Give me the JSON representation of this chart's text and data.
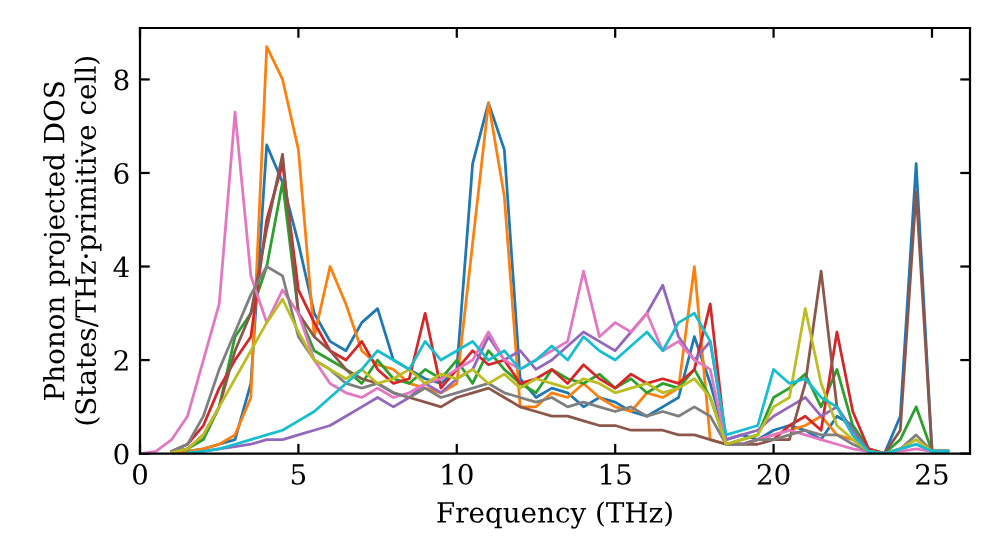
{
  "chart_data": {
    "type": "line",
    "xlabel": "Frequency (THz)",
    "ylabel": "Phonon projected DOS\n(States/THz·primitive cell)",
    "xlim": [
      0,
      26.2
    ],
    "ylim": [
      0,
      9.1
    ],
    "xticks": [
      0,
      5,
      10,
      15,
      20,
      25
    ],
    "yticks": [
      0,
      2,
      4,
      6,
      8
    ],
    "grid": false,
    "legend": false,
    "marker": "none",
    "line_style": "solid",
    "x": [
      0,
      0.5,
      1,
      1.5,
      2,
      2.5,
      3,
      3.5,
      4,
      4.5,
      5,
      5.5,
      6,
      6.5,
      7,
      7.5,
      8,
      8.5,
      9,
      9.5,
      10,
      10.5,
      11,
      11.5,
      12,
      12.5,
      13,
      13.5,
      14,
      14.5,
      15,
      15.5,
      16,
      16.5,
      17,
      17.5,
      18,
      18.5,
      19,
      19.5,
      20,
      20.5,
      21,
      21.5,
      22,
      22.5,
      23,
      23.5,
      24,
      24.5,
      25,
      25.5
    ],
    "series": [
      {
        "color": "#1f77b4",
        "values": [
          null,
          null,
          0.02,
          0.05,
          0.1,
          0.2,
          0.3,
          1.5,
          6.6,
          5.8,
          4.5,
          3.0,
          2.4,
          2.2,
          2.8,
          3.1,
          2.0,
          1.8,
          1.6,
          1.5,
          1.8,
          6.2,
          7.5,
          6.5,
          1.6,
          1.2,
          1.4,
          1.3,
          1.0,
          1.2,
          1.1,
          0.9,
          0.8,
          1.0,
          1.2,
          2.5,
          1.5,
          0.3,
          0.4,
          0.3,
          0.5,
          0.6,
          0.5,
          0.3,
          0.8,
          0.6,
          0.1,
          0,
          0.8,
          6.2,
          0.05,
          0.05
        ]
      },
      {
        "color": "#ff7f0e",
        "values": [
          null,
          null,
          0.02,
          0.05,
          0.1,
          0.2,
          0.4,
          1.2,
          8.7,
          8.0,
          6.5,
          2.5,
          4.0,
          3.2,
          2.2,
          1.9,
          1.8,
          1.5,
          1.4,
          1.3,
          1.5,
          4.5,
          7.5,
          5.5,
          1.0,
          1.0,
          1.3,
          1.2,
          1.5,
          1.2,
          1.0,
          0.9,
          1.3,
          1.2,
          1.4,
          4.0,
          0.3,
          0.2,
          0.2,
          0.3,
          0.4,
          0.5,
          0.6,
          0.8,
          0.4,
          0.3,
          0.05,
          null,
          null,
          null,
          null,
          null
        ]
      },
      {
        "color": "#2ca02c",
        "values": [
          null,
          null,
          0.02,
          0.1,
          0.3,
          1.0,
          2.5,
          3.0,
          4.0,
          5.8,
          3.0,
          2.2,
          2.0,
          1.8,
          1.5,
          2.0,
          1.6,
          1.5,
          1.8,
          1.6,
          2.0,
          1.5,
          2.2,
          1.8,
          1.5,
          1.3,
          1.8,
          1.6,
          1.5,
          1.7,
          1.4,
          1.6,
          1.3,
          1.5,
          1.4,
          1.8,
          1.2,
          0.2,
          0.3,
          0.4,
          1.2,
          1.4,
          1.7,
          1.0,
          1.8,
          0.6,
          0.1,
          0,
          0.3,
          1.0,
          0.05,
          0.05
        ]
      },
      {
        "color": "#d62728",
        "values": [
          null,
          null,
          0.05,
          0.2,
          0.6,
          1.4,
          2.0,
          2.5,
          5.0,
          6.2,
          3.5,
          2.8,
          2.2,
          2.0,
          2.4,
          1.8,
          1.5,
          1.6,
          3.0,
          1.4,
          1.8,
          2.2,
          1.9,
          2.0,
          1.5,
          1.6,
          1.8,
          1.5,
          1.9,
          1.6,
          1.4,
          1.7,
          1.5,
          1.6,
          1.5,
          1.8,
          3.2,
          0.2,
          0.2,
          0.3,
          0.3,
          0.6,
          0.8,
          0.5,
          2.6,
          0.9,
          0.1,
          0,
          0.1,
          null,
          null,
          null
        ]
      },
      {
        "color": "#9467bd",
        "values": [
          null,
          null,
          null,
          null,
          0.05,
          0.1,
          0.15,
          0.2,
          0.3,
          0.3,
          0.4,
          0.5,
          0.6,
          0.8,
          1.0,
          1.2,
          1.0,
          1.2,
          1.5,
          1.3,
          1.6,
          1.8,
          2.5,
          2.0,
          2.2,
          1.8,
          2.0,
          2.3,
          2.6,
          2.4,
          2.2,
          2.6,
          3.0,
          3.6,
          2.5,
          2.0,
          2.4,
          0.3,
          0.4,
          0.5,
          0.8,
          1.0,
          1.2,
          0.8,
          1.0,
          0.5,
          0.05,
          0,
          0.1,
          0.2,
          0.05,
          0.05
        ]
      },
      {
        "color": "#8c564b",
        "values": [
          null,
          null,
          0.03,
          0.1,
          0.4,
          1.0,
          2.2,
          3.0,
          4.8,
          6.4,
          3.0,
          2.5,
          2.2,
          1.8,
          1.6,
          1.5,
          1.3,
          1.2,
          1.1,
          1.0,
          1.2,
          1.3,
          1.4,
          1.2,
          1.0,
          0.9,
          0.8,
          0.8,
          0.7,
          0.6,
          0.6,
          0.5,
          0.5,
          0.5,
          0.4,
          0.4,
          0.3,
          0.2,
          0.2,
          0.2,
          0.3,
          0.3,
          1.5,
          3.9,
          1.0,
          0.4,
          0.05,
          0,
          0.5,
          5.6,
          0.05,
          0.05
        ]
      },
      {
        "color": "#e377c2",
        "values": [
          0,
          0.05,
          0.3,
          0.8,
          2.0,
          3.2,
          7.3,
          3.8,
          2.8,
          3.5,
          3.0,
          2.0,
          1.5,
          1.3,
          1.2,
          1.4,
          1.2,
          1.3,
          1.5,
          1.6,
          1.8,
          2.0,
          2.6,
          2.0,
          1.8,
          2.0,
          2.2,
          2.4,
          3.9,
          2.5,
          2.8,
          2.6,
          3.0,
          2.2,
          2.4,
          2.0,
          1.8,
          0.2,
          0.2,
          0.3,
          0.4,
          0.5,
          0.4,
          0.3,
          0.2,
          0.1,
          0.05,
          0,
          0.05,
          0.1,
          0.05,
          0.05
        ]
      },
      {
        "color": "#7f7f7f",
        "values": [
          null,
          null,
          0.05,
          0.2,
          0.8,
          1.8,
          2.6,
          3.4,
          4.0,
          3.8,
          2.5,
          2.0,
          1.8,
          1.5,
          1.4,
          1.5,
          1.3,
          1.2,
          1.4,
          1.2,
          1.3,
          1.4,
          1.5,
          1.3,
          1.2,
          1.1,
          1.2,
          1.0,
          1.1,
          1.0,
          0.9,
          1.0,
          0.8,
          0.9,
          0.8,
          1.0,
          0.8,
          0.2,
          0.2,
          0.3,
          0.3,
          0.4,
          0.5,
          0.4,
          0.4,
          0.2,
          0.05,
          0,
          0.1,
          0.4,
          0.05,
          0.05
        ]
      },
      {
        "color": "#bcbd22",
        "values": [
          null,
          null,
          0.02,
          0.1,
          0.4,
          1.0,
          1.6,
          2.2,
          2.8,
          3.3,
          2.6,
          2.0,
          1.8,
          1.6,
          1.8,
          1.5,
          1.6,
          1.8,
          1.5,
          1.7,
          1.6,
          1.8,
          1.5,
          1.7,
          1.4,
          1.6,
          1.5,
          1.4,
          1.6,
          1.5,
          1.3,
          1.4,
          1.5,
          1.3,
          1.4,
          1.6,
          1.2,
          0.2,
          0.3,
          0.4,
          1.0,
          1.2,
          3.1,
          1.5,
          0.6,
          0.3,
          0.05,
          0,
          0.1,
          0.3,
          0.05,
          0.05
        ]
      },
      {
        "color": "#17becf",
        "values": [
          null,
          null,
          null,
          0.02,
          0.05,
          0.1,
          0.2,
          0.3,
          0.4,
          0.5,
          0.7,
          0.9,
          1.2,
          1.5,
          1.8,
          2.2,
          2.0,
          1.8,
          2.4,
          2.0,
          2.2,
          2.4,
          2.0,
          2.2,
          1.8,
          2.0,
          2.3,
          2.0,
          2.5,
          2.2,
          2.0,
          2.3,
          2.6,
          2.2,
          2.8,
          3.0,
          2.4,
          0.4,
          0.5,
          0.6,
          1.8,
          1.5,
          1.6,
          1.2,
          1.0,
          0.4,
          0.05,
          0,
          0.1,
          0.2,
          0.05,
          0.05
        ]
      }
    ]
  }
}
